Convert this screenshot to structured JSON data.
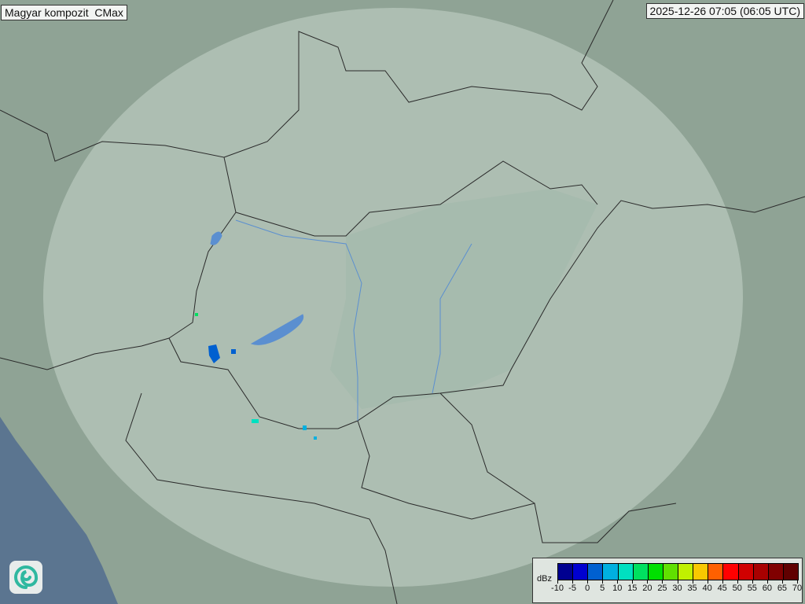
{
  "header": {
    "title": "Magyar kompozit  CMax",
    "timestamp": "2025-12-26 07:05 (06:05 UTC)"
  },
  "legend": {
    "unit": "dBz",
    "ticks": [
      "-10",
      "-5",
      "0",
      "5",
      "10",
      "15",
      "20",
      "25",
      "30",
      "35",
      "40",
      "45",
      "50",
      "55",
      "60",
      "65",
      "70"
    ],
    "colors": [
      "#000090",
      "#0000d0",
      "#0060d0",
      "#00b0e0",
      "#00e0c0",
      "#00e060",
      "#00e000",
      "#60e000",
      "#c0f000",
      "#f8c800",
      "#ff6000",
      "#ff0000",
      "#d00000",
      "#a80000",
      "#800000",
      "#600000"
    ]
  },
  "colors": {
    "land": "#8fa395",
    "radar_coverage": "#b8c9be",
    "sea": "#5b7590",
    "border": "#2a2a2a",
    "rivers": "#5b8fd0"
  },
  "logo": {
    "icon": "met-service-swirl-icon"
  }
}
